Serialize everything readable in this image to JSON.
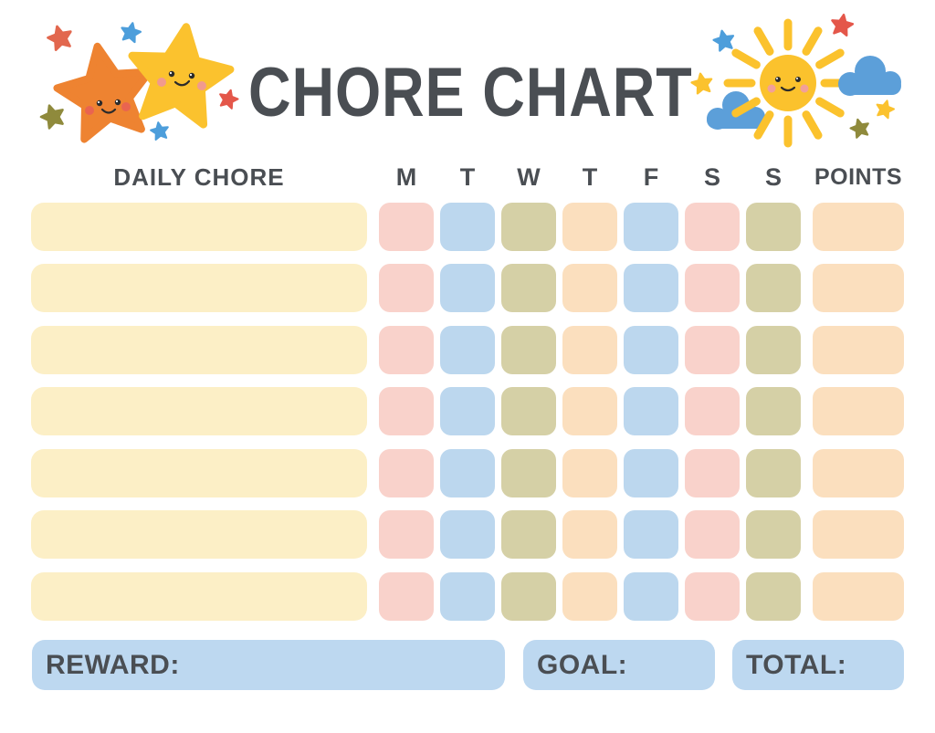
{
  "title": "CHORE CHART",
  "header": {
    "chore": "DAILY CHORE",
    "days": [
      "M",
      "T",
      "W",
      "T",
      "F",
      "S",
      "S"
    ],
    "points": "POINTS"
  },
  "grid": {
    "rows": 7,
    "chore_color": "cell_cream",
    "day_pattern": [
      "cell_pink",
      "cell_blue",
      "cell_olive",
      "cell_peach",
      "cell_blue",
      "cell_pink",
      "cell_olive"
    ],
    "points_color": "cell_peach"
  },
  "footer": {
    "reward_label": "REWARD:",
    "goal_label": "GOAL:",
    "total_label": "TOTAL:"
  },
  "colors": {
    "text": "#4A4E53",
    "cell_cream": "#FCEFC6",
    "cell_pink": "#F9D2CB",
    "cell_blue": "#BCD7EE",
    "cell_olive": "#D5D0A6",
    "cell_peach": "#FBDFBE",
    "panel_blue": "#BDD8F0",
    "star_orange": "#EE8331",
    "star_yellow": "#FBC22E",
    "sun_yellow": "#FBC22D",
    "cloud_blue": "#5C9FD9",
    "mini_red": "#E4574A",
    "mini_red_orange": "#E2674E",
    "mini_blue": "#4D9EDB",
    "mini_olive": "#8F8A3C",
    "blush_orange_star": "#E96450",
    "blush_yellow_star": "#F19A8E",
    "face_dark": "#2B2B2B"
  },
  "decorations": {
    "left_cluster": [
      "big-orange-star",
      "big-yellow-star",
      "red-orange-mini-star",
      "blue-mini-star",
      "olive-mini-star",
      "red-mini-star",
      "blue-mini-star"
    ],
    "right_cluster": [
      "smiling-sun",
      "blue-cloud-left",
      "blue-cloud-right",
      "blue-mini-star",
      "red-mini-star",
      "yellow-mini-star",
      "yellow-mini-star",
      "olive-mini-star"
    ]
  }
}
